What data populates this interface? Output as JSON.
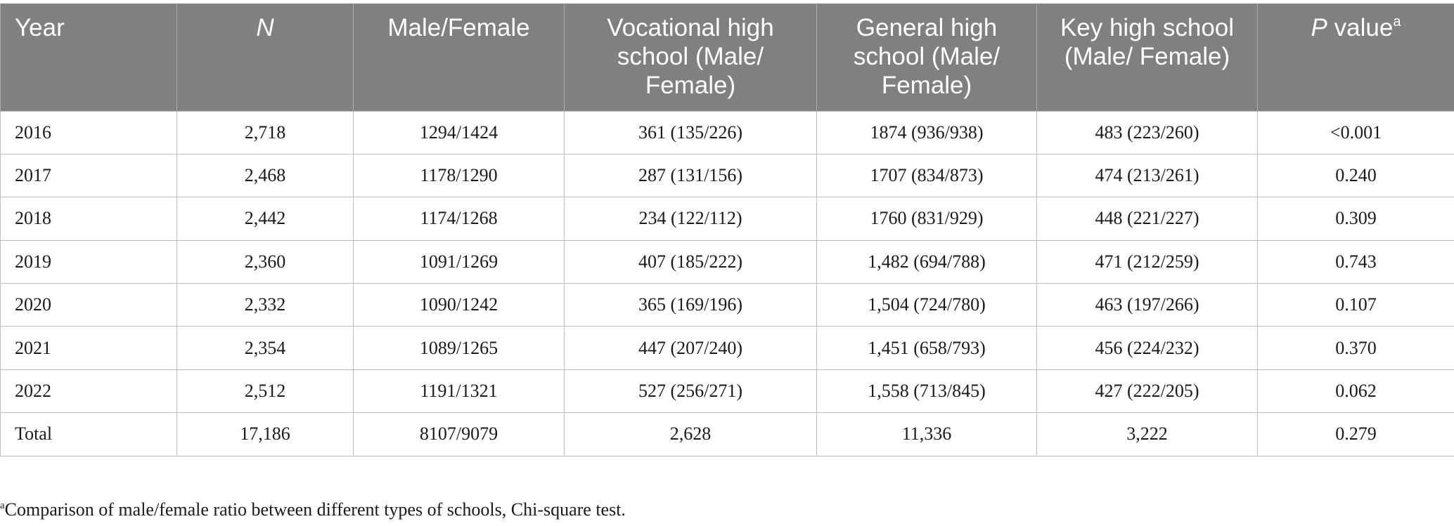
{
  "table": {
    "headers": [
      {
        "text": "Year",
        "italic": false,
        "sup": ""
      },
      {
        "text": "N",
        "italic": true,
        "sup": ""
      },
      {
        "text": "Male/Female",
        "italic": false,
        "sup": ""
      },
      {
        "text": "Vocational high school (Male/ Female)",
        "italic": false,
        "sup": ""
      },
      {
        "text": "General high school (Male/ Female)",
        "italic": false,
        "sup": ""
      },
      {
        "text": "Key high school (Male/ Female)",
        "italic": false,
        "sup": ""
      },
      {
        "text_italic": "P",
        "text": " value",
        "sup": "a"
      }
    ],
    "rows": [
      [
        "2016",
        "2,718",
        "1294/1424",
        "361 (135/226)",
        "1874 (936/938)",
        "483 (223/260)",
        "<0.001"
      ],
      [
        "2017",
        "2,468",
        "1178/1290",
        "287 (131/156)",
        "1707 (834/873)",
        "474 (213/261)",
        "0.240"
      ],
      [
        "2018",
        "2,442",
        "1174/1268",
        "234 (122/112)",
        "1760 (831/929)",
        "448 (221/227)",
        "0.309"
      ],
      [
        "2019",
        "2,360",
        "1091/1269",
        "407 (185/222)",
        "1,482 (694/788)",
        "471 (212/259)",
        "0.743"
      ],
      [
        "2020",
        "2,332",
        "1090/1242",
        "365 (169/196)",
        "1,504 (724/780)",
        "463 (197/266)",
        "0.107"
      ],
      [
        "2021",
        "2,354",
        "1089/1265",
        "447 (207/240)",
        "1,451 (658/793)",
        "456 (224/232)",
        "0.370"
      ],
      [
        "2022",
        "2,512",
        "1191/1321",
        "527 (256/271)",
        "1,558 (713/845)",
        "427 (222/205)",
        "0.062"
      ],
      [
        "Total",
        "17,186",
        "8107/9079",
        "2,628",
        "11,336",
        "3,222",
        "0.279"
      ]
    ]
  },
  "footnote": {
    "marker": "a",
    "text": "Comparison of male/female ratio between different types of schools, Chi-square test."
  },
  "colors": {
    "header_bg": "#7f8180",
    "header_text": "#ffffff",
    "grid_line": "#bdbdbd"
  }
}
